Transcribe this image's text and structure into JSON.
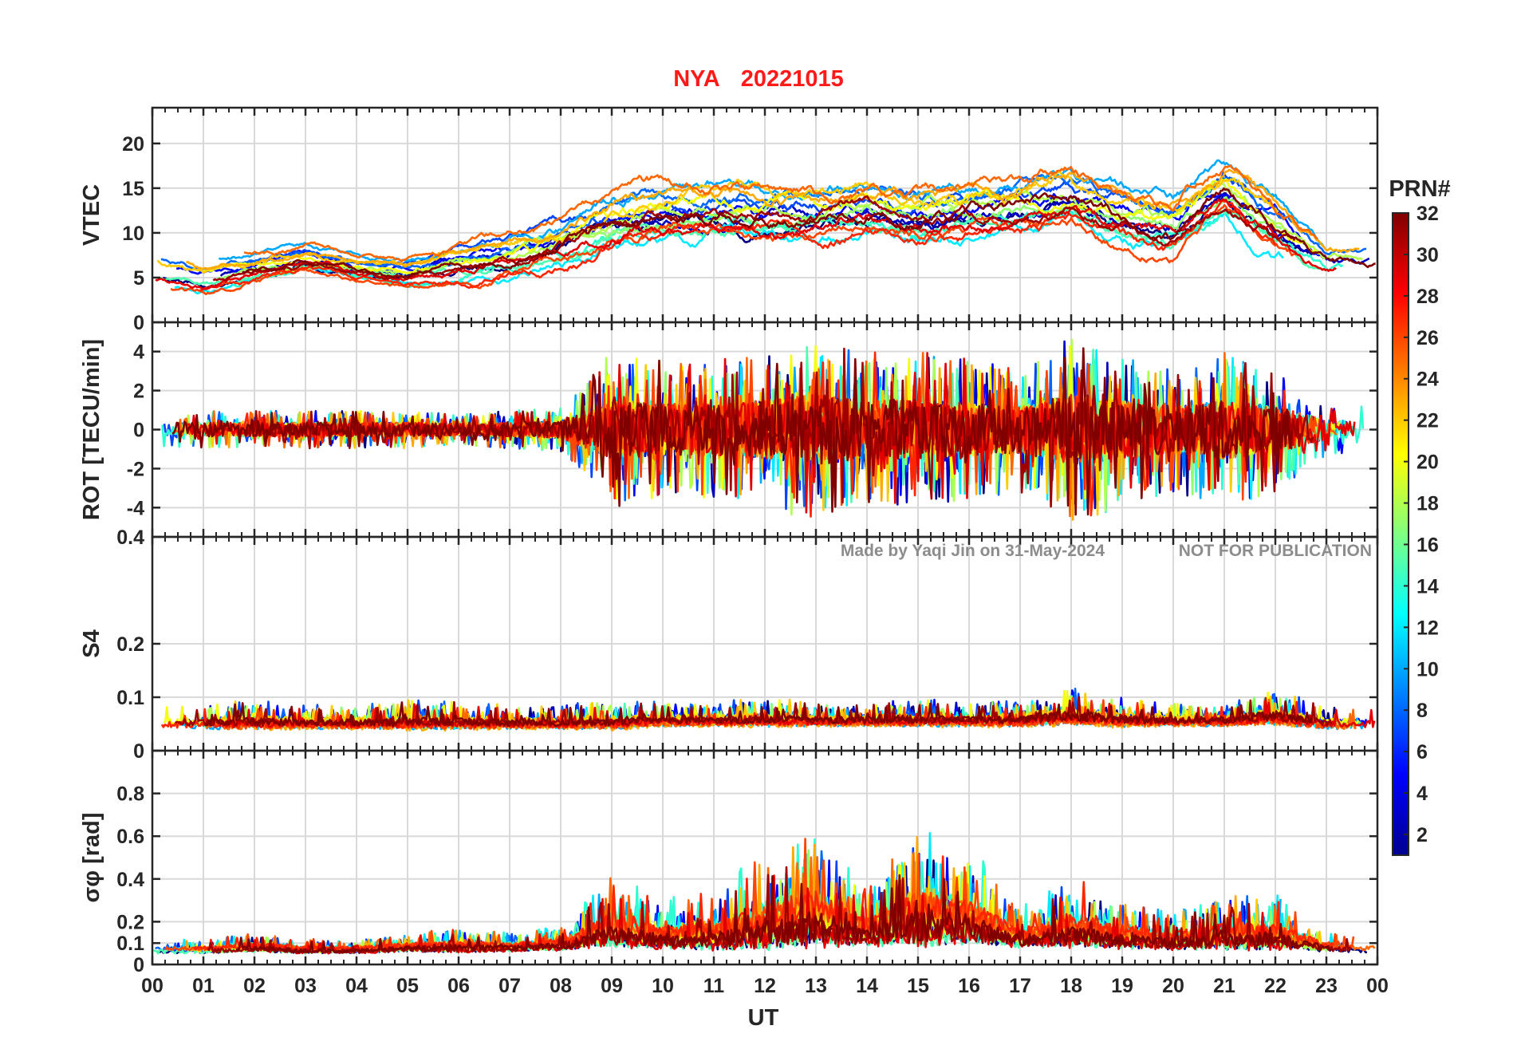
{
  "chart_data": {
    "type": "line",
    "title": {
      "station": "NYA",
      "date": "20221015"
    },
    "title_color": "#ff1a1a",
    "watermark": {
      "left": "Made by Yaqi Jin on 31-May-2024",
      "right": "NOT FOR PUBLICATION"
    },
    "xlabel": "UT",
    "x_unit": "hours",
    "xlim": [
      0,
      24
    ],
    "x_ticks": [
      0,
      1,
      2,
      3,
      4,
      5,
      6,
      7,
      8,
      9,
      10,
      11,
      12,
      13,
      14,
      15,
      16,
      17,
      18,
      19,
      20,
      21,
      22,
      23,
      24
    ],
    "x_tick_labels": [
      "00",
      "01",
      "02",
      "03",
      "04",
      "05",
      "06",
      "07",
      "08",
      "09",
      "10",
      "11",
      "12",
      "13",
      "14",
      "15",
      "16",
      "17",
      "18",
      "19",
      "20",
      "21",
      "22",
      "23",
      "00"
    ],
    "grid": true,
    "colormap": "jet",
    "colorbar": {
      "label": "PRN#",
      "range": [
        1,
        32
      ],
      "ticks": [
        2,
        4,
        6,
        8,
        10,
        12,
        14,
        16,
        18,
        20,
        22,
        24,
        26,
        28,
        30,
        32
      ],
      "tick_labels": [
        "2",
        "4",
        "6",
        "8",
        "10",
        "12",
        "14",
        "16",
        "18",
        "20",
        "22",
        "24",
        "26",
        "28",
        "30",
        "32"
      ],
      "position": "right"
    },
    "series_color_key": "PRN",
    "series_prns": [
      1,
      3,
      5,
      7,
      8,
      10,
      12,
      14,
      15,
      17,
      18,
      20,
      22,
      23,
      25,
      26,
      27,
      29,
      31,
      32
    ],
    "panels": [
      {
        "id": "vtec",
        "ylabel": "VTEC",
        "ylim": [
          0,
          24
        ],
        "y_ticks": [
          0,
          5,
          10,
          15,
          20
        ],
        "y_tick_labels": [
          "0",
          "5",
          "10",
          "15",
          "20"
        ],
        "envelope": {
          "x": [
            0,
            1,
            2,
            3,
            4,
            5,
            6,
            7,
            8,
            9,
            10,
            11,
            12,
            13,
            14,
            15,
            16,
            17,
            18,
            19,
            20,
            21,
            22,
            23,
            24
          ],
          "mean": [
            6,
            5,
            6,
            7,
            6,
            5.5,
            6.5,
            7.5,
            9,
            11,
            12,
            12.5,
            12,
            12,
            13,
            12,
            12.5,
            13,
            14,
            12,
            11,
            15,
            11,
            7,
            7
          ],
          "spread": [
            2.5,
            2.5,
            2.5,
            2.5,
            2,
            2.5,
            3,
            3.5,
            4,
            5,
            5,
            5,
            5,
            5,
            5,
            5,
            5,
            5,
            5,
            5,
            5,
            5,
            5,
            3,
            3
          ]
        }
      },
      {
        "id": "rot",
        "ylabel": "ROT [TECU/min]",
        "ylim": [
          -5.5,
          5.5
        ],
        "y_ticks": [
          -4,
          -2,
          0,
          2,
          4
        ],
        "y_tick_labels": [
          "-4",
          "-2",
          "0",
          "2",
          "4"
        ],
        "envelope": {
          "x": [
            0,
            1,
            2,
            3,
            4,
            5,
            6,
            7,
            8,
            9,
            10,
            11,
            12,
            13,
            14,
            15,
            16,
            17,
            18,
            19,
            20,
            21,
            22,
            23,
            24
          ],
          "mean": [
            0,
            0,
            0,
            0,
            0,
            0,
            0,
            0,
            0,
            0,
            0,
            0,
            0,
            0,
            0,
            0,
            0,
            0,
            0,
            0,
            0,
            0,
            0,
            0,
            0
          ],
          "spread": [
            0.6,
            0.6,
            0.6,
            0.6,
            0.6,
            0.6,
            0.5,
            0.6,
            0.7,
            2.5,
            2.2,
            2.2,
            2.5,
            3.0,
            2.5,
            2.5,
            2.3,
            2.0,
            3.0,
            2.5,
            2.0,
            2.5,
            2.0,
            0.8,
            0.8
          ]
        }
      },
      {
        "id": "s4",
        "ylabel": "S4",
        "ylim": [
          0,
          0.4
        ],
        "y_ticks": [
          0,
          0.1,
          0.2,
          0.4
        ],
        "y_tick_labels": [
          "0",
          "0.1",
          "0.2",
          "0.4"
        ],
        "envelope": {
          "x": [
            0,
            1,
            2,
            3,
            4,
            5,
            6,
            7,
            8,
            9,
            10,
            11,
            12,
            13,
            14,
            15,
            16,
            17,
            18,
            19,
            20,
            21,
            22,
            23,
            24
          ],
          "mean": [
            0.045,
            0.045,
            0.045,
            0.045,
            0.045,
            0.045,
            0.045,
            0.045,
            0.045,
            0.045,
            0.05,
            0.05,
            0.05,
            0.05,
            0.05,
            0.05,
            0.05,
            0.05,
            0.055,
            0.05,
            0.05,
            0.05,
            0.055,
            0.045,
            0.045
          ],
          "spread": [
            0.02,
            0.02,
            0.025,
            0.02,
            0.02,
            0.025,
            0.025,
            0.02,
            0.02,
            0.025,
            0.02,
            0.02,
            0.025,
            0.02,
            0.02,
            0.025,
            0.02,
            0.025,
            0.03,
            0.025,
            0.02,
            0.02,
            0.03,
            0.02,
            0.02
          ]
        }
      },
      {
        "id": "sigma_phi",
        "ylabel": "σφ [rad]",
        "ylim": [
          0,
          1
        ],
        "y_ticks": [
          0,
          0.1,
          0.2,
          0.4,
          0.6,
          0.8
        ],
        "y_tick_labels": [
          "0",
          "0.1",
          "0.2",
          "0.4",
          "0.6",
          "0.8"
        ],
        "envelope": {
          "x": [
            0,
            1,
            2,
            3,
            4,
            5,
            6,
            7,
            8,
            9,
            10,
            11,
            12,
            13,
            14,
            15,
            16,
            17,
            18,
            19,
            20,
            21,
            22,
            23,
            24
          ],
          "mean": [
            0.06,
            0.06,
            0.07,
            0.06,
            0.06,
            0.07,
            0.07,
            0.07,
            0.08,
            0.12,
            0.1,
            0.1,
            0.12,
            0.15,
            0.12,
            0.15,
            0.15,
            0.1,
            0.12,
            0.1,
            0.09,
            0.1,
            0.1,
            0.07,
            0.06
          ],
          "spread": [
            0.03,
            0.03,
            0.04,
            0.03,
            0.03,
            0.04,
            0.05,
            0.04,
            0.05,
            0.15,
            0.1,
            0.12,
            0.2,
            0.25,
            0.12,
            0.25,
            0.2,
            0.08,
            0.15,
            0.1,
            0.08,
            0.12,
            0.12,
            0.04,
            0.03
          ]
        }
      }
    ]
  }
}
